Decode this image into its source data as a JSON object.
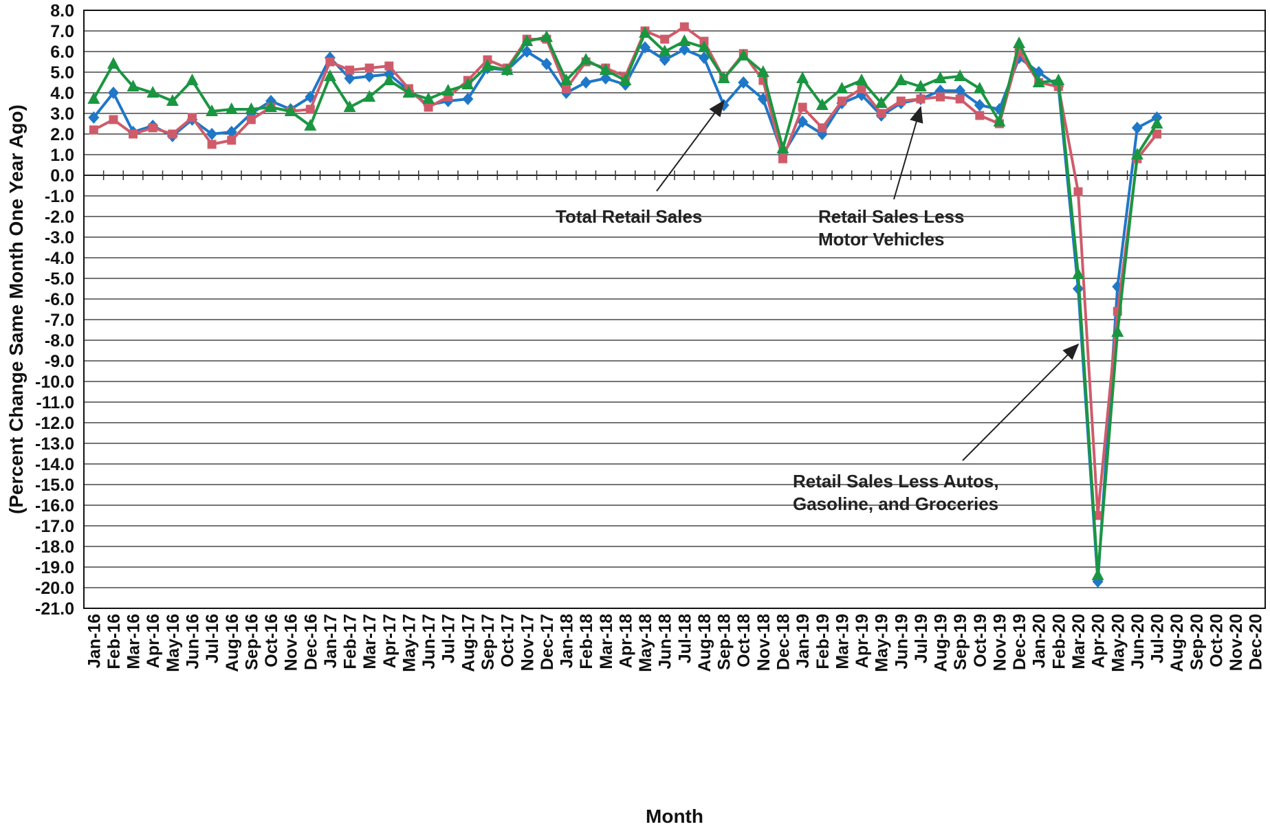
{
  "chart_data": {
    "type": "line",
    "title": "",
    "xlabel": "Month",
    "ylabel": "(Percent Change Same Month One Year Ago)",
    "ylim": [
      -21,
      8
    ],
    "yticks": [
      "8.0",
      "7.0",
      "6.0",
      "5.0",
      "4.0",
      "3.0",
      "2.0",
      "1.0",
      "0.0",
      "-1.0",
      "-2.0",
      "-3.0",
      "-4.0",
      "-5.0",
      "-6.0",
      "-7.0",
      "-8.0",
      "-9.0",
      "-10.0",
      "-11.0",
      "-12.0",
      "-13.0",
      "-14.0",
      "-15.0",
      "-16.0",
      "-17.0",
      "-18.0",
      "-19.0",
      "-20.0",
      "-21.0"
    ],
    "grid": true,
    "categories": [
      "Jan-16",
      "Feb-16",
      "Mar-16",
      "Apr-16",
      "May-16",
      "Jun-16",
      "Jul-16",
      "Aug-16",
      "Sep-16",
      "Oct-16",
      "Nov-16",
      "Dec-16",
      "Jan-17",
      "Feb-17",
      "Mar-17",
      "Apr-17",
      "May-17",
      "Jun-17",
      "Jul-17",
      "Aug-17",
      "Sep-17",
      "Oct-17",
      "Nov-17",
      "Dec-17",
      "Jan-18",
      "Feb-18",
      "Mar-18",
      "Apr-18",
      "May-18",
      "Jun-18",
      "Jul-18",
      "Aug-18",
      "Sep-18",
      "Oct-18",
      "Nov-18",
      "Dec-18",
      "Jan-19",
      "Feb-19",
      "Mar-19",
      "Apr-19",
      "May-19",
      "Jun-19",
      "Jul-19",
      "Aug-19",
      "Sep-19",
      "Oct-19",
      "Nov-19",
      "Dec-19",
      "Jan-20",
      "Feb-20",
      "Mar-20",
      "Apr-20",
      "May-20",
      "Jun-20",
      "Jul-20",
      "Aug-20",
      "Sep-20",
      "Oct-20",
      "Nov-20",
      "Dec-20"
    ],
    "series": [
      {
        "name": "Total Retail Sales",
        "color": "#1f77c8",
        "marker": "diamond",
        "values": [
          2.8,
          4.0,
          2.1,
          2.4,
          1.9,
          2.7,
          2.0,
          2.1,
          3.0,
          3.6,
          3.2,
          3.8,
          5.7,
          4.7,
          4.8,
          4.9,
          4.1,
          3.4,
          3.6,
          3.7,
          5.2,
          5.1,
          6.0,
          5.4,
          4.0,
          4.5,
          4.7,
          4.4,
          6.2,
          5.6,
          6.1,
          5.7,
          3.4,
          4.5,
          3.7,
          1.0,
          2.6,
          2.0,
          3.5,
          3.9,
          2.9,
          3.5,
          3.7,
          4.1,
          4.1,
          3.4,
          3.2,
          5.7,
          5.0,
          4.3,
          -5.5,
          -19.7,
          -5.4,
          2.3,
          2.8,
          null,
          null,
          null,
          null,
          null
        ]
      },
      {
        "name": "Retail Sales Less Motor Vehicles",
        "color": "#cf5b6a",
        "marker": "square",
        "values": [
          2.2,
          2.7,
          2.0,
          2.3,
          2.0,
          2.8,
          1.5,
          1.7,
          2.7,
          3.3,
          3.1,
          3.2,
          5.5,
          5.1,
          5.2,
          5.3,
          4.2,
          3.3,
          3.8,
          4.6,
          5.6,
          5.2,
          6.6,
          6.6,
          4.2,
          5.5,
          5.2,
          4.8,
          7.0,
          6.6,
          7.2,
          6.5,
          4.7,
          5.9,
          4.6,
          0.8,
          3.3,
          2.3,
          3.6,
          4.2,
          3.0,
          3.6,
          3.7,
          3.8,
          3.7,
          2.9,
          2.5,
          6.0,
          4.5,
          4.3,
          -0.8,
          -16.5,
          -6.6,
          0.8,
          2.0,
          null,
          null,
          null,
          null,
          null
        ]
      },
      {
        "name": "Retail Sales Less Autos, Gasoline, and Groceries",
        "color": "#1a9641",
        "marker": "triangle",
        "values": [
          3.7,
          5.4,
          4.3,
          4.0,
          3.6,
          4.6,
          3.1,
          3.2,
          3.2,
          3.3,
          3.1,
          2.4,
          4.8,
          3.3,
          3.8,
          4.6,
          4.0,
          3.7,
          4.1,
          4.4,
          5.3,
          5.1,
          6.5,
          6.7,
          4.6,
          5.6,
          5.1,
          4.6,
          6.9,
          6.0,
          6.5,
          6.2,
          4.7,
          5.8,
          5.0,
          1.3,
          4.7,
          3.4,
          4.2,
          4.6,
          3.5,
          4.6,
          4.3,
          4.7,
          4.8,
          4.2,
          2.6,
          6.4,
          4.5,
          4.6,
          -4.8,
          -19.4,
          -7.6,
          1.0,
          2.5,
          null,
          null,
          null,
          null,
          null
        ]
      }
    ],
    "annotations": [
      {
        "text_lines": [
          "Total Retail Sales"
        ],
        "points_to": "Total Retail Sales",
        "month": "Sep-18",
        "value": 3.6
      },
      {
        "text_lines": [
          "Retail Sales Less",
          "Motor Vehicles"
        ],
        "points_to": "Retail Sales Less Motor Vehicles",
        "month": "Jul-19",
        "value": 3.3
      },
      {
        "text_lines": [
          "Retail Sales Less Autos,",
          "Gasoline, and Groceries"
        ],
        "points_to": "Retail Sales Less Autos, Gasoline, and Groceries",
        "month": "Mar-20",
        "value": -8.2
      }
    ]
  }
}
